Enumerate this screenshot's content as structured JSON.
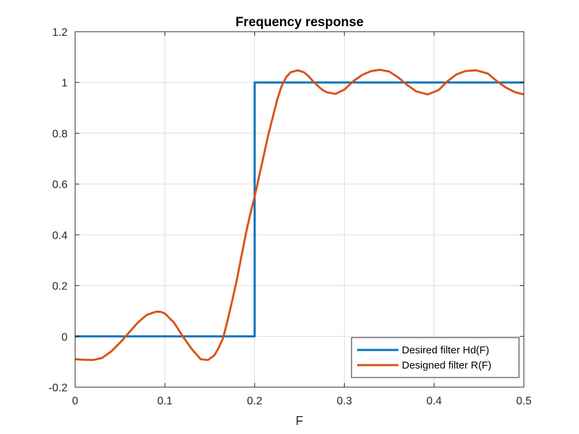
{
  "chart_data": {
    "type": "line",
    "title": "Frequency response",
    "xlabel": "F",
    "ylabel": "",
    "xlim": [
      0,
      0.5
    ],
    "ylim": [
      -0.2,
      1.2
    ],
    "grid": true,
    "legend_position": "bottom-right",
    "x_ticks": [
      "0",
      "0.1",
      "0.2",
      "0.3",
      "0.4",
      "0.5"
    ],
    "y_ticks": [
      "-0.2",
      "0",
      "0.2",
      "0.4",
      "0.6",
      "0.8",
      "1",
      "1.2"
    ],
    "series": [
      {
        "name": "Desired filter Hd(F)",
        "color": "#0072BD",
        "x": [
          0,
          0.2,
          0.2,
          0.5
        ],
        "y": [
          0,
          0,
          1,
          1
        ]
      },
      {
        "name": "Designed filter R(F)",
        "color": "#D95319",
        "x": [
          0,
          0.01,
          0.02,
          0.03,
          0.04,
          0.05,
          0.06,
          0.07,
          0.08,
          0.09,
          0.095,
          0.1,
          0.11,
          0.12,
          0.13,
          0.14,
          0.148,
          0.155,
          0.16,
          0.165,
          0.17,
          0.175,
          0.18,
          0.185,
          0.19,
          0.195,
          0.2,
          0.205,
          0.21,
          0.215,
          0.22,
          0.225,
          0.23,
          0.235,
          0.24,
          0.248,
          0.255,
          0.26,
          0.265,
          0.27,
          0.275,
          0.28,
          0.29,
          0.3,
          0.31,
          0.32,
          0.33,
          0.34,
          0.35,
          0.36,
          0.37,
          0.38,
          0.393,
          0.405,
          0.415,
          0.425,
          0.435,
          0.447,
          0.46,
          0.47,
          0.48,
          0.49,
          0.5
        ],
        "y": [
          -0.09,
          -0.092,
          -0.093,
          -0.085,
          -0.06,
          -0.025,
          0.015,
          0.055,
          0.085,
          0.097,
          0.097,
          0.09,
          0.055,
          0.0,
          -0.05,
          -0.09,
          -0.093,
          -0.075,
          -0.045,
          -0.005,
          0.065,
          0.14,
          0.22,
          0.31,
          0.4,
          0.48,
          0.55,
          0.63,
          0.71,
          0.79,
          0.86,
          0.93,
          0.985,
          1.02,
          1.04,
          1.048,
          1.04,
          1.025,
          1.005,
          0.988,
          0.972,
          0.962,
          0.955,
          0.972,
          1.005,
          1.03,
          1.045,
          1.05,
          1.043,
          1.02,
          0.99,
          0.965,
          0.953,
          0.97,
          1.005,
          1.032,
          1.045,
          1.048,
          1.035,
          1.005,
          0.98,
          0.962,
          0.953
        ]
      }
    ]
  }
}
